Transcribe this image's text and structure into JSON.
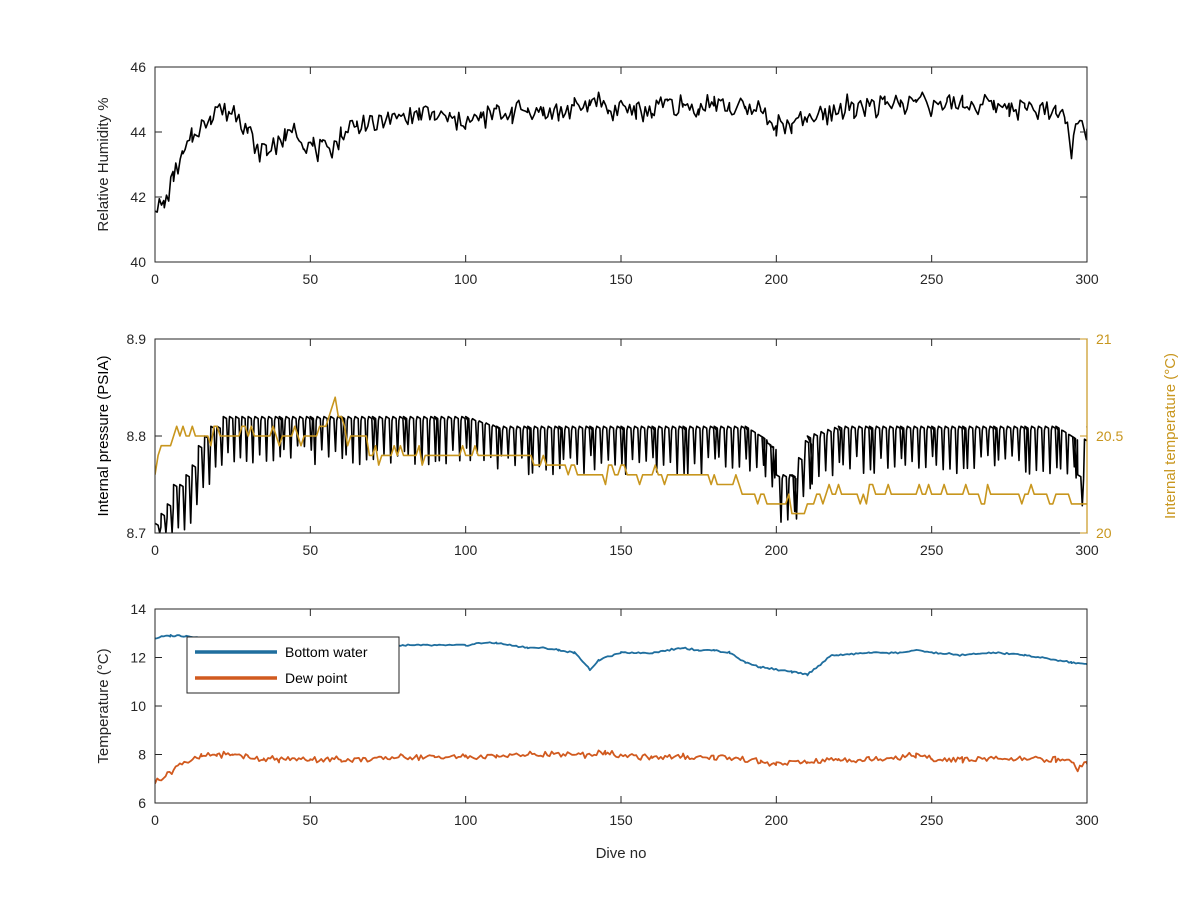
{
  "chart_data": [
    {
      "type": "line",
      "title": "",
      "xlabel": "",
      "ylabel": "Relative Humidity %",
      "xlim": [
        0,
        300
      ],
      "ylim": [
        40,
        46
      ],
      "xticks": [
        0,
        50,
        100,
        150,
        200,
        250,
        300
      ],
      "yticks": [
        40,
        42,
        44,
        46
      ],
      "grid": false,
      "series": [
        {
          "color": "#000000",
          "x": [
            0,
            3,
            6,
            9,
            12,
            15,
            18,
            21,
            24,
            27,
            30,
            33,
            36,
            39,
            42,
            45,
            48,
            51,
            54,
            57,
            60,
            65,
            70,
            75,
            80,
            85,
            90,
            95,
            100,
            105,
            110,
            115,
            120,
            125,
            130,
            135,
            140,
            143,
            146,
            150,
            155,
            160,
            165,
            170,
            175,
            180,
            185,
            190,
            195,
            200,
            205,
            210,
            215,
            220,
            225,
            230,
            235,
            240,
            245,
            247,
            250,
            255,
            260,
            265,
            270,
            275,
            280,
            285,
            290,
            293,
            295,
            297,
            300
          ],
          "y": [
            41.9,
            41.7,
            42.6,
            43.2,
            43.9,
            44.2,
            44.5,
            44.8,
            44.6,
            44.6,
            44.0,
            43.5,
            43.4,
            43.6,
            43.8,
            44.2,
            43.6,
            43.5,
            43.4,
            43.5,
            43.9,
            44.3,
            44.2,
            44.4,
            44.5,
            44.5,
            44.5,
            44.4,
            44.3,
            44.4,
            44.6,
            44.6,
            44.7,
            44.6,
            44.6,
            44.7,
            44.8,
            45.1,
            44.6,
            44.9,
            44.6,
            44.7,
            44.9,
            44.8,
            44.7,
            44.9,
            44.8,
            44.7,
            44.7,
            44.2,
            44.2,
            44.4,
            44.5,
            44.7,
            44.8,
            44.8,
            44.8,
            44.9,
            44.9,
            45.2,
            44.8,
            44.8,
            44.9,
            44.8,
            44.8,
            44.8,
            44.7,
            44.7,
            44.7,
            44.5,
            43.5,
            44.2,
            44.1
          ]
        }
      ]
    },
    {
      "type": "line",
      "title": "",
      "xlabel": "",
      "ylabel": "Internal pressure (PSIA)",
      "ylabel_right": "Internal temperature (°C)",
      "xlim": [
        0,
        300
      ],
      "ylim": [
        8.7,
        8.9
      ],
      "ylim_right": [
        20,
        21
      ],
      "xticks": [
        0,
        50,
        100,
        150,
        200,
        250,
        300
      ],
      "yticks": [
        8.7,
        8.8,
        8.9
      ],
      "yticks_right": [
        20,
        20.5,
        21
      ],
      "ytick_labels": [
        "8.7",
        "8.8",
        "8.9"
      ],
      "ytick_labels_right": [
        "20",
        "20.5",
        "21"
      ],
      "right_axis_color": "#c8961e",
      "grid": false,
      "series": [
        {
          "axis": "left",
          "color": "#000000",
          "x": [
            0,
            2,
            4,
            6,
            8,
            10,
            12,
            14,
            16,
            18,
            20,
            22,
            24,
            26,
            28,
            30,
            40,
            50,
            60,
            70,
            80,
            90,
            100,
            110,
            120,
            130,
            140,
            150,
            160,
            170,
            180,
            190,
            195,
            198,
            200,
            205,
            210,
            220,
            230,
            240,
            250,
            260,
            270,
            280,
            290,
            295,
            297,
            300
          ],
          "y": [
            8.71,
            8.72,
            8.73,
            8.75,
            8.75,
            8.76,
            8.77,
            8.79,
            8.8,
            8.81,
            8.81,
            8.82,
            8.82,
            8.82,
            8.82,
            8.82,
            8.82,
            8.82,
            8.82,
            8.82,
            8.82,
            8.82,
            8.82,
            8.81,
            8.81,
            8.81,
            8.81,
            8.81,
            8.81,
            8.81,
            8.81,
            8.81,
            8.8,
            8.79,
            8.76,
            8.76,
            8.8,
            8.81,
            8.81,
            8.81,
            8.81,
            8.81,
            8.81,
            8.81,
            8.81,
            8.8,
            8.76,
            8.81
          ]
        },
        {
          "axis": "right",
          "color": "#c8961e",
          "x": [
            0,
            2,
            4,
            6,
            8,
            10,
            14,
            20,
            30,
            40,
            50,
            55,
            58,
            62,
            65,
            70,
            75,
            80,
            90,
            100,
            110,
            120,
            130,
            140,
            150,
            160,
            170,
            180,
            190,
            200,
            205,
            210,
            215,
            220,
            225,
            230,
            240,
            250,
            260,
            270,
            280,
            285,
            290,
            295,
            300
          ],
          "y": [
            20.35,
            20.45,
            20.45,
            20.48,
            20.5,
            20.5,
            20.52,
            20.5,
            20.5,
            20.5,
            20.5,
            20.55,
            20.68,
            20.5,
            20.5,
            20.4,
            20.38,
            20.4,
            20.4,
            20.4,
            20.38,
            20.38,
            20.35,
            20.3,
            20.3,
            20.3,
            20.3,
            20.28,
            20.22,
            20.15,
            20.12,
            20.12,
            20.2,
            20.2,
            20.22,
            20.2,
            20.2,
            20.2,
            20.2,
            20.2,
            20.2,
            20.18,
            20.2,
            20.15,
            20.15
          ]
        }
      ]
    },
    {
      "type": "line",
      "title": "",
      "xlabel": "Dive no",
      "ylabel": "Temperature (°C)",
      "xlim": [
        0,
        300
      ],
      "ylim": [
        6,
        14
      ],
      "xticks": [
        0,
        50,
        100,
        150,
        200,
        250,
        300
      ],
      "yticks": [
        6,
        8,
        10,
        12,
        14
      ],
      "grid": false,
      "legend_position": "top-left",
      "series": [
        {
          "name": "Bottom water",
          "color": "#1f6e9e",
          "x": [
            0,
            5,
            10,
            15,
            20,
            30,
            40,
            50,
            60,
            70,
            80,
            90,
            100,
            105,
            110,
            120,
            125,
            130,
            135,
            138,
            140,
            143,
            145,
            150,
            160,
            170,
            175,
            180,
            185,
            190,
            195,
            200,
            205,
            210,
            215,
            218,
            220,
            230,
            240,
            245,
            250,
            260,
            270,
            280,
            290,
            295,
            300
          ],
          "y": [
            12.8,
            12.9,
            12.9,
            12.8,
            12.7,
            12.7,
            12.6,
            12.5,
            12.5,
            12.5,
            12.5,
            12.5,
            12.5,
            12.6,
            12.6,
            12.4,
            12.4,
            12.3,
            12.2,
            11.8,
            11.5,
            11.9,
            12.0,
            12.2,
            12.2,
            12.4,
            12.3,
            12.3,
            12.2,
            11.8,
            11.6,
            11.5,
            11.4,
            11.3,
            11.8,
            12.1,
            12.1,
            12.2,
            12.2,
            12.3,
            12.2,
            12.1,
            12.2,
            12.1,
            11.9,
            11.8,
            11.7
          ]
        },
        {
          "name": "Dew point",
          "color": "#d15a1f",
          "x": [
            0,
            2,
            4,
            6,
            8,
            10,
            15,
            20,
            25,
            30,
            35,
            40,
            50,
            60,
            70,
            80,
            90,
            100,
            110,
            120,
            130,
            140,
            145,
            150,
            160,
            170,
            180,
            190,
            195,
            200,
            210,
            220,
            230,
            240,
            245,
            250,
            260,
            270,
            280,
            290,
            295,
            297,
            300
          ],
          "y": [
            6.9,
            7.0,
            7.2,
            7.4,
            7.6,
            7.7,
            7.9,
            8.0,
            8.0,
            7.9,
            7.8,
            7.8,
            7.8,
            7.8,
            7.8,
            7.9,
            7.9,
            7.9,
            7.9,
            8.0,
            8.0,
            8.0,
            8.1,
            7.9,
            7.9,
            7.9,
            7.9,
            7.8,
            7.7,
            7.6,
            7.7,
            7.8,
            7.8,
            7.9,
            8.0,
            7.8,
            7.8,
            7.8,
            7.8,
            7.8,
            7.7,
            7.4,
            7.6
          ]
        }
      ]
    }
  ]
}
